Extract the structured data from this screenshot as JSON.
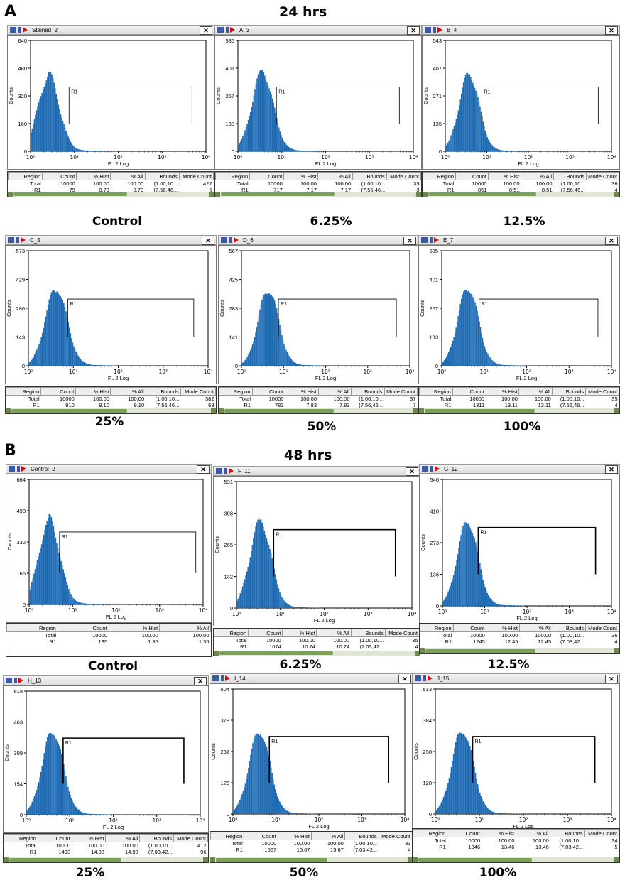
{
  "figure": {
    "section_a": {
      "letter": "A",
      "heading": "24 hrs"
    },
    "section_b": {
      "letter": "B",
      "heading": "48 hrs"
    },
    "axis_x_label": "FL 2 Log",
    "axis_y_label": "Counts",
    "gate_label": "R1",
    "x_ticks": [
      "10⁰",
      "10¹",
      "10²",
      "10³",
      "10⁴"
    ],
    "close_glyph": "✕",
    "table_headers": [
      "Region",
      "Count",
      "% Hist",
      "% All",
      "Bounds",
      "Mode Count"
    ],
    "colors": {
      "histogram": "#1f6bb3",
      "gate": "#000000",
      "scrollbar": "#7aa05a"
    }
  },
  "chart_data": [
    {
      "id": "p1",
      "type": "histogram",
      "window_title": "Stained_2",
      "condition": "Control",
      "time": "24 hrs",
      "xlabel": "FL 2 Log",
      "ylabel": "Counts",
      "xscale": "log",
      "xlim": [
        1,
        10000
      ],
      "ylim": [
        0,
        640
      ],
      "y_ticks": [
        "640",
        "480",
        "320",
        "160",
        "0"
      ],
      "peak_x": 2.5,
      "peak_y": 430,
      "gate": [
        7.56,
        4800
      ],
      "rows": [
        [
          "Total",
          "10000",
          "100.00",
          "100.00",
          "(1.00,10...",
          "427"
        ],
        [
          "R1",
          "79",
          "0.79",
          "0.79",
          "(7.56,46...",
          "5"
        ]
      ]
    },
    {
      "id": "p2",
      "type": "histogram",
      "window_title": "A_3",
      "condition": "6.25%",
      "time": "24 hrs",
      "xlabel": "FL 2 Log",
      "ylabel": "Counts",
      "xscale": "log",
      "xlim": [
        1,
        10000
      ],
      "ylim": [
        0,
        535
      ],
      "y_ticks": [
        "535",
        "401",
        "267",
        "133",
        "0"
      ],
      "peak_x": 3.5,
      "peak_y": 380,
      "gate": [
        7.56,
        4800
      ],
      "rows": [
        [
          "Total",
          "10000",
          "100.00",
          "100.00",
          "(1.00,10...",
          "35"
        ],
        [
          "R1",
          "717",
          "7.17",
          "7.17",
          "(7.56,46...",
          "3"
        ]
      ]
    },
    {
      "id": "p3",
      "type": "histogram",
      "window_title": "B_4",
      "condition": "12.5%",
      "time": "24 hrs",
      "xlabel": "FL 2 Log",
      "ylabel": "Counts",
      "xscale": "log",
      "xlim": [
        1,
        10000
      ],
      "ylim": [
        0,
        543
      ],
      "y_ticks": [
        "543",
        "407",
        "271",
        "135",
        "0"
      ],
      "peak_x": 3.6,
      "peak_y": 375,
      "gate": [
        7.56,
        4800
      ],
      "rows": [
        [
          "Total",
          "10000",
          "100.00",
          "100.00",
          "(1.00,10...",
          "36"
        ],
        [
          "R1",
          "851",
          "8.51",
          "8.51",
          "(7.56,46...",
          "4"
        ]
      ]
    },
    {
      "id": "p4",
      "type": "histogram",
      "window_title": "C_5",
      "condition": "25%",
      "time": "24 hrs",
      "xlabel": "FL 2 Log",
      "ylabel": "Counts",
      "xscale": "log",
      "xlim": [
        1,
        10000
      ],
      "ylim": [
        0,
        573
      ],
      "y_ticks": [
        "573",
        "429",
        "286",
        "143",
        "0"
      ],
      "peak_x": 4.0,
      "peak_y": 382,
      "gate": [
        7.56,
        4800
      ],
      "rows": [
        [
          "Total",
          "10000",
          "100.00",
          "100.00",
          "(1.00,10...",
          "382"
        ],
        [
          "R1",
          "910",
          "9.10",
          "9.10",
          "(7.56,46...",
          "68"
        ]
      ]
    },
    {
      "id": "p5",
      "type": "histogram",
      "window_title": "D_6",
      "condition": "50%",
      "time": "24 hrs",
      "xlabel": "FL 2 Log",
      "ylabel": "Counts",
      "xscale": "log",
      "xlim": [
        1,
        10000
      ],
      "ylim": [
        0,
        567
      ],
      "y_ticks": [
        "567",
        "425",
        "283",
        "141",
        "0"
      ],
      "peak_x": 4.2,
      "peak_y": 370,
      "gate": [
        7.56,
        4800
      ],
      "rows": [
        [
          "Total",
          "10000",
          "100.00",
          "100.00",
          "(1.00,10...",
          "37"
        ],
        [
          "R1",
          "783",
          "7.83",
          "7.83",
          "(7.56,46...",
          "7"
        ]
      ]
    },
    {
      "id": "p6",
      "type": "histogram",
      "window_title": "E_7",
      "condition": "100%",
      "time": "24 hrs",
      "xlabel": "FL 2 Log",
      "ylabel": "Counts",
      "xscale": "log",
      "xlim": [
        1,
        10000
      ],
      "ylim": [
        0,
        535
      ],
      "y_ticks": [
        "535",
        "401",
        "267",
        "133",
        "0"
      ],
      "peak_x": 4.0,
      "peak_y": 360,
      "gate": [
        7.56,
        4800
      ],
      "rows": [
        [
          "Total",
          "10000",
          "100.00",
          "100.00",
          "(1.00,10...",
          "35"
        ],
        [
          "R1",
          "1311",
          "13.11",
          "13.11",
          "(7.56,46...",
          "4"
        ]
      ]
    },
    {
      "id": "p7",
      "type": "histogram",
      "window_title": "Control_2",
      "condition": "Control",
      "time": "48 hrs",
      "xlabel": "FL 2 Log",
      "ylabel": "Counts",
      "xscale": "log",
      "xlim": [
        1,
        10000
      ],
      "ylim": [
        0,
        664
      ],
      "y_ticks": [
        "664",
        "498",
        "332",
        "166",
        "0"
      ],
      "peak_x": 2.8,
      "peak_y": 440,
      "gate": [
        5.0,
        6800
      ],
      "rows": [
        [
          "Total",
          "10000",
          "100.00",
          "100.00"
        ],
        [
          "R1",
          "135",
          "1.35",
          "1.35"
        ]
      ]
    },
    {
      "id": "p8",
      "type": "histogram",
      "window_title": "F_11",
      "condition": "6.25%",
      "time": "48 hrs",
      "xlabel": "FL 2 Log",
      "ylabel": "Counts",
      "xscale": "log",
      "xlim": [
        1,
        10000
      ],
      "ylim": [
        0,
        531
      ],
      "y_ticks": [
        "531",
        "398",
        "265",
        "132",
        "0"
      ],
      "peak_x": 3.4,
      "peak_y": 360,
      "gate": [
        7.03,
        4200
      ],
      "rows": [
        [
          "Total",
          "10000",
          "100.00",
          "100.00",
          "(1.00,10...",
          "35"
        ],
        [
          "R1",
          "1074",
          "10.74",
          "10.74",
          "(7.03,42...",
          "4"
        ]
      ]
    },
    {
      "id": "p9",
      "type": "histogram",
      "window_title": "G_12",
      "condition": "12.5%",
      "time": "48 hrs",
      "xlabel": "FL 2 Log",
      "ylabel": "Counts",
      "xscale": "log",
      "xlim": [
        1,
        10000
      ],
      "ylim": [
        0,
        546
      ],
      "y_ticks": [
        "546",
        "410",
        "273",
        "136",
        "0"
      ],
      "peak_x": 3.8,
      "peak_y": 360,
      "gate": [
        7.03,
        4200
      ],
      "rows": [
        [
          "Total",
          "10000",
          "100.00",
          "100.00",
          "(1.00,10...",
          "36"
        ],
        [
          "R1",
          "1245",
          "12.45",
          "12.45",
          "(7.03,42...",
          "4"
        ]
      ]
    },
    {
      "id": "p10",
      "type": "histogram",
      "window_title": "H_13",
      "condition": "25%",
      "time": "48 hrs",
      "xlabel": "FL 2 Log",
      "ylabel": "Counts",
      "xscale": "log",
      "xlim": [
        1,
        10000
      ],
      "ylim": [
        0,
        618
      ],
      "y_ticks": [
        "618",
        "463",
        "309",
        "154",
        "0"
      ],
      "peak_x": 3.9,
      "peak_y": 412,
      "gate": [
        7.03,
        4200
      ],
      "rows": [
        [
          "Total",
          "10000",
          "100.00",
          "100.00",
          "(1.00,10...",
          "412"
        ],
        [
          "R1",
          "1493",
          "14.93",
          "14.93",
          "(7.03,42...",
          "96"
        ]
      ]
    },
    {
      "id": "p11",
      "type": "histogram",
      "window_title": "I_14",
      "condition": "50%",
      "time": "48 hrs",
      "xlabel": "FL 2 Log",
      "ylabel": "Counts",
      "xscale": "log",
      "xlim": [
        1,
        10000
      ],
      "ylim": [
        0,
        504
      ],
      "y_ticks": [
        "504",
        "378",
        "252",
        "126",
        "0"
      ],
      "peak_x": 4.0,
      "peak_y": 330,
      "gate": [
        7.03,
        4200
      ],
      "rows": [
        [
          "Total",
          "10000",
          "100.00",
          "100.00",
          "(1.00,10...",
          "33"
        ],
        [
          "R1",
          "1567",
          "15.67",
          "15.67",
          "(7.03,42...",
          "4"
        ]
      ]
    },
    {
      "id": "p12",
      "type": "histogram",
      "window_title": "J_15",
      "condition": "100%",
      "time": "48 hrs",
      "xlabel": "FL 2 Log",
      "ylabel": "Counts",
      "xscale": "log",
      "xlim": [
        1,
        10000
      ],
      "ylim": [
        0,
        513
      ],
      "y_ticks": [
        "513",
        "384",
        "256",
        "128",
        "0"
      ],
      "peak_x": 4.0,
      "peak_y": 340,
      "gate": [
        7.03,
        4200
      ],
      "rows": [
        [
          "Total",
          "10000",
          "100.00",
          "100.00",
          "(1.00,10...",
          "34"
        ],
        [
          "R1",
          "1346",
          "13.46",
          "13.46",
          "(7.03,42...",
          "5"
        ]
      ]
    }
  ]
}
